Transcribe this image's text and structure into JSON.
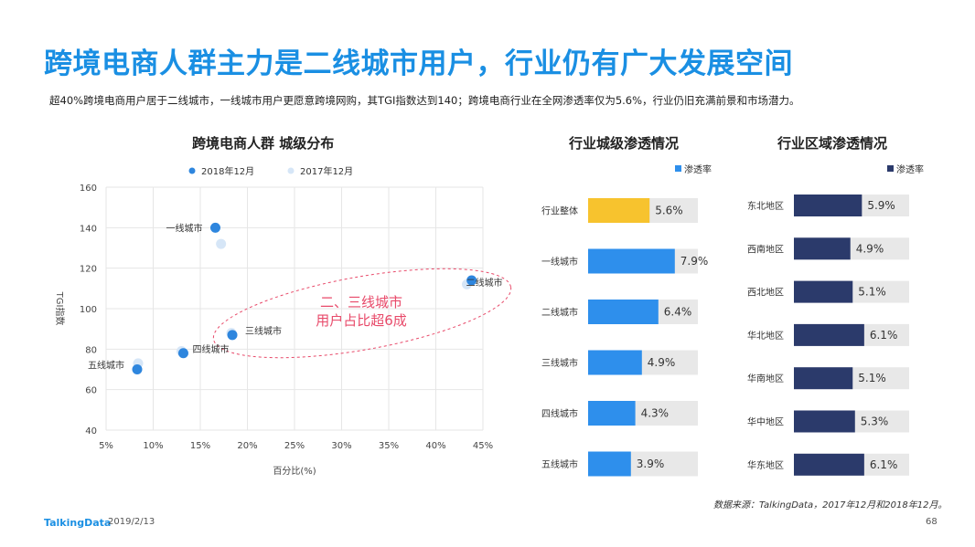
{
  "title": "跨境电商人群主力是二线城市用户，行业仍有广大发展空间",
  "subtitle": "超40%跨境电商用户居于二线城市，一线城市用户更愿意跨境网购，其TGI指数达到140；跨境电商行业在全网渗透率仅为5.6%，行业仍旧充满前景和市场潜力。",
  "footer": {
    "logo": "TalkingData",
    "date": "2019/2/13",
    "page": "68"
  },
  "source": "数据来源：TalkingData，2017年12月和2018年12月。",
  "colors": {
    "accent": "#1a8fe3",
    "dot_2018": "#2e86de",
    "dot_2017": "#d6e6f7",
    "bar_blue": "#2e8fec",
    "bar_yellow": "#f7c32e",
    "bar_navy": "#2b3a6b",
    "bar_bg": "#e8e8e8",
    "annot": "#e84a6a"
  },
  "chart_data": [
    {
      "type": "scatter",
      "title": "跨境电商人群  城级分布",
      "xlabel": "百分比(%)",
      "ylabel": "TGI指数",
      "xlim": [
        5,
        45
      ],
      "ylim": [
        40,
        160
      ],
      "xticks": [
        "5%",
        "10%",
        "15%",
        "20%",
        "25%",
        "30%",
        "35%",
        "40%",
        "45%"
      ],
      "yticks": [
        "40",
        "60",
        "80",
        "100",
        "120",
        "140",
        "160"
      ],
      "legend": "top",
      "grid": true,
      "annotation": [
        "二、三线城市",
        "用户占比超6成"
      ],
      "series": [
        {
          "name": "2018年12月",
          "points": [
            {
              "label": "一线城市",
              "x": 16.6,
              "y": 140
            },
            {
              "label": "二线城市",
              "x": 43.8,
              "y": 114
            },
            {
              "label": "三线城市",
              "x": 18.4,
              "y": 87
            },
            {
              "label": "四线城市",
              "x": 13.2,
              "y": 78
            },
            {
              "label": "五线城市",
              "x": 8.3,
              "y": 70
            }
          ]
        },
        {
          "name": "2017年12月",
          "points": [
            {
              "label": "一线城市",
              "x": 17.2,
              "y": 132
            },
            {
              "label": "二线城市",
              "x": 43.3,
              "y": 112
            },
            {
              "label": "三线城市",
              "x": 18.3,
              "y": 88
            },
            {
              "label": "四线城市",
              "x": 13.0,
              "y": 79
            },
            {
              "label": "五线城市",
              "x": 8.4,
              "y": 73
            }
          ]
        }
      ]
    },
    {
      "type": "bar",
      "title": "行业城级渗透情况",
      "legend_label": "渗透率",
      "xlim": [
        0,
        10
      ],
      "categories": [
        "行业整体",
        "一线城市",
        "二线城市",
        "三线城市",
        "四线城市",
        "五线城市"
      ],
      "values": [
        5.6,
        7.9,
        6.4,
        4.9,
        4.3,
        3.9
      ],
      "value_labels": [
        "5.6%",
        "7.9%",
        "6.4%",
        "4.9%",
        "4.3%",
        "3.9%"
      ]
    },
    {
      "type": "bar",
      "title": "行业区域渗透情况",
      "legend_label": "渗透率",
      "xlim": [
        0,
        10
      ],
      "categories": [
        "东北地区",
        "西南地区",
        "西北地区",
        "华北地区",
        "华南地区",
        "华中地区",
        "华东地区"
      ],
      "values": [
        5.9,
        4.9,
        5.1,
        6.1,
        5.1,
        5.3,
        6.1
      ],
      "value_labels": [
        "5.9%",
        "4.9%",
        "5.1%",
        "6.1%",
        "5.1%",
        "5.3%",
        "6.1%"
      ]
    }
  ]
}
